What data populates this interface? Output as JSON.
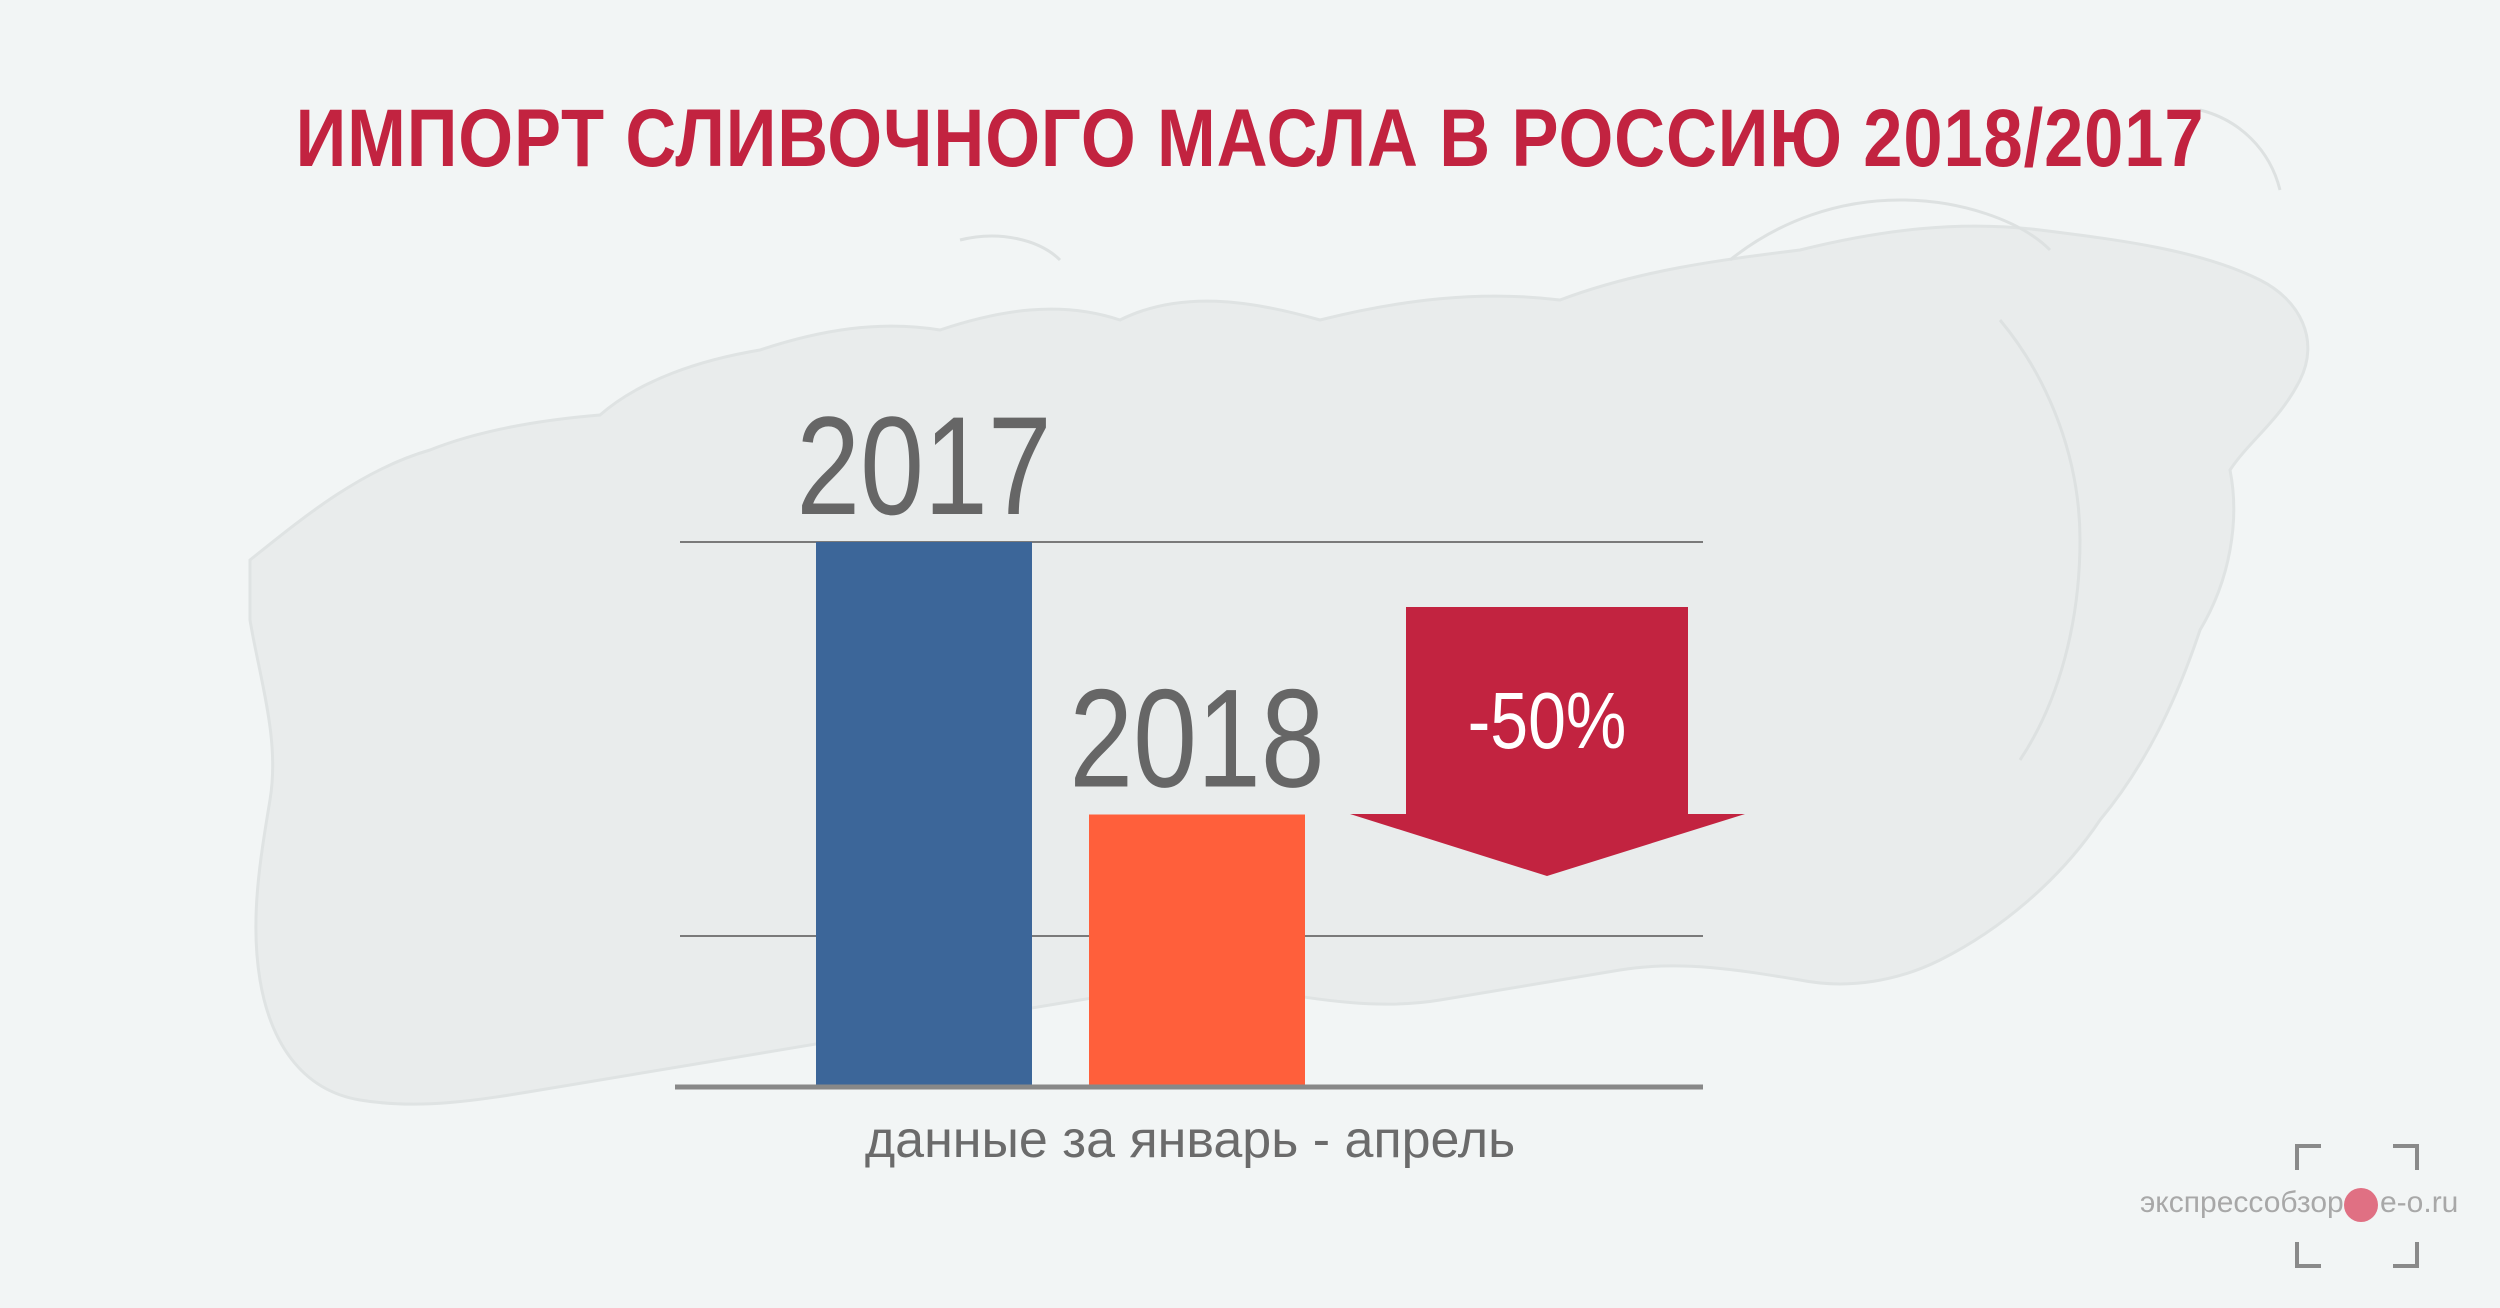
{
  "title": "ИМПОРТ СЛИВОЧНОГО МАСЛА В РОССИЮ 2018/2017",
  "caption": "данные за январь - апрель",
  "watermark": {
    "text": "экспрессобзор",
    "domain": "e-o.ru"
  },
  "colors": {
    "title": "#c22340",
    "bar_2017": "#3c6699",
    "bar_2018": "#ff5f3b",
    "arrow": "#c22340",
    "year_labels": "#666666",
    "background": "#f2f5f5"
  },
  "chart_data": {
    "type": "bar",
    "categories": [
      "2017",
      "2018"
    ],
    "values": [
      100,
      50
    ],
    "ylim": [
      0,
      100
    ],
    "grid": true,
    "annotation": {
      "text": "-50%",
      "shape": "down-arrow"
    }
  }
}
